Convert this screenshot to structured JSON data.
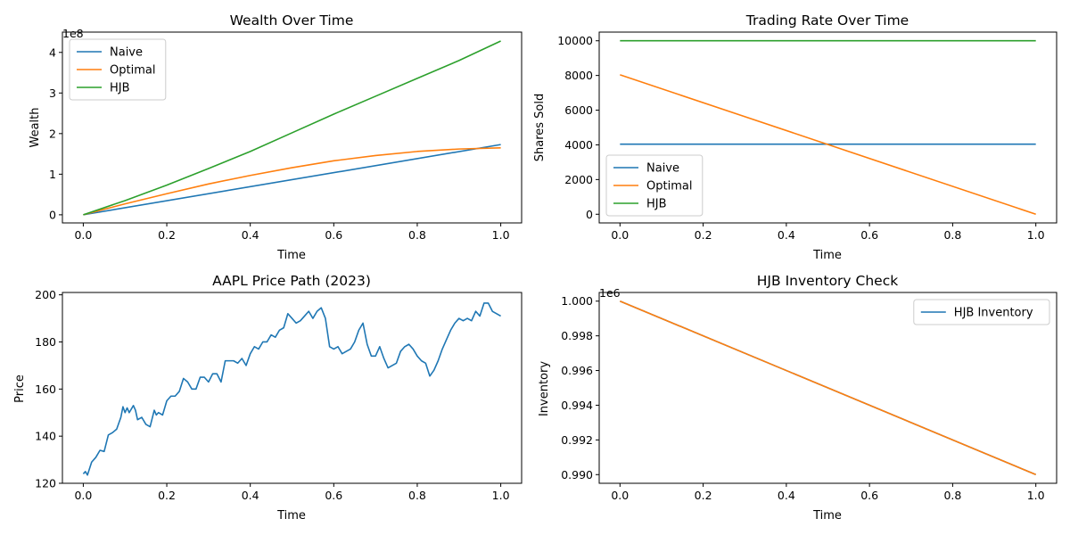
{
  "chart_data": [
    {
      "id": "wealth",
      "type": "line",
      "title": "Wealth Over Time",
      "xlabel": "Time",
      "ylabel": "Wealth",
      "offset_label": "1e8",
      "xlim": [
        -0.05,
        1.05
      ],
      "ylim": [
        -0.2,
        4.5
      ],
      "xticks": [
        0.0,
        0.2,
        0.4,
        0.6,
        0.8,
        1.0
      ],
      "xtick_labels": [
        "0.0",
        "0.2",
        "0.4",
        "0.6",
        "0.8",
        "1.0"
      ],
      "yticks": [
        0,
        1,
        2,
        3,
        4
      ],
      "ytick_labels": [
        "0",
        "1",
        "2",
        "3",
        "4"
      ],
      "legend": "upper-left",
      "series": [
        {
          "name": "Naive",
          "color": "#1f77b4",
          "x": [
            0.0,
            1.0
          ],
          "y": [
            0.0,
            1.73
          ]
        },
        {
          "name": "Optimal",
          "color": "#ff7f0e",
          "x": [
            0.0,
            0.1,
            0.2,
            0.3,
            0.4,
            0.5,
            0.6,
            0.7,
            0.8,
            0.9,
            1.0
          ],
          "y": [
            0.0,
            0.27,
            0.52,
            0.76,
            0.97,
            1.16,
            1.33,
            1.46,
            1.56,
            1.62,
            1.65
          ]
        },
        {
          "name": "HJB",
          "color": "#2ca02c",
          "x": [
            0.0,
            0.1,
            0.2,
            0.3,
            0.4,
            0.5,
            0.6,
            0.7,
            0.8,
            0.9,
            1.0
          ],
          "y": [
            0.0,
            0.35,
            0.73,
            1.14,
            1.56,
            2.02,
            2.48,
            2.92,
            3.36,
            3.8,
            4.28
          ]
        }
      ]
    },
    {
      "id": "trading",
      "type": "line",
      "title": "Trading Rate Over Time",
      "xlabel": "Time",
      "ylabel": "Shares Sold",
      "xlim": [
        -0.05,
        1.05
      ],
      "ylim": [
        -500,
        10500
      ],
      "xticks": [
        0.0,
        0.2,
        0.4,
        0.6,
        0.8,
        1.0
      ],
      "xtick_labels": [
        "0.0",
        "0.2",
        "0.4",
        "0.6",
        "0.8",
        "1.0"
      ],
      "yticks": [
        0,
        2000,
        4000,
        6000,
        8000,
        10000
      ],
      "ytick_labels": [
        "0",
        "2000",
        "4000",
        "6000",
        "8000",
        "10000"
      ],
      "legend": "lower-left",
      "series": [
        {
          "name": "Naive",
          "color": "#1f77b4",
          "x": [
            0.0,
            1.0
          ],
          "y": [
            4040,
            4040
          ]
        },
        {
          "name": "Optimal",
          "color": "#ff7f0e",
          "x": [
            0.0,
            1.0
          ],
          "y": [
            8040,
            0
          ]
        },
        {
          "name": "HJB",
          "color": "#2ca02c",
          "x": [
            0.0,
            1.0
          ],
          "y": [
            10000,
            10000
          ]
        }
      ]
    },
    {
      "id": "price",
      "type": "line",
      "title": "AAPL Price Path (2023)",
      "xlabel": "Time",
      "ylabel": "Price",
      "xlim": [
        -0.05,
        1.05
      ],
      "ylim": [
        120,
        201
      ],
      "xticks": [
        0.0,
        0.2,
        0.4,
        0.6,
        0.8,
        1.0
      ],
      "xtick_labels": [
        "0.0",
        "0.2",
        "0.4",
        "0.6",
        "0.8",
        "1.0"
      ],
      "yticks": [
        120,
        140,
        160,
        180,
        200
      ],
      "ytick_labels": [
        "120",
        "140",
        "160",
        "180",
        "200"
      ],
      "series": [
        {
          "color": "#1f77b4",
          "x": [
            0.0,
            0.005,
            0.01,
            0.02,
            0.03,
            0.04,
            0.05,
            0.06,
            0.07,
            0.08,
            0.09,
            0.095,
            0.1,
            0.105,
            0.11,
            0.12,
            0.125,
            0.13,
            0.14,
            0.15,
            0.16,
            0.17,
            0.175,
            0.18,
            0.19,
            0.2,
            0.21,
            0.22,
            0.23,
            0.24,
            0.25,
            0.26,
            0.27,
            0.28,
            0.29,
            0.3,
            0.31,
            0.32,
            0.33,
            0.34,
            0.35,
            0.36,
            0.37,
            0.38,
            0.39,
            0.4,
            0.41,
            0.42,
            0.43,
            0.44,
            0.45,
            0.46,
            0.47,
            0.48,
            0.49,
            0.5,
            0.51,
            0.52,
            0.53,
            0.54,
            0.55,
            0.56,
            0.57,
            0.58,
            0.59,
            0.6,
            0.61,
            0.62,
            0.63,
            0.64,
            0.65,
            0.66,
            0.67,
            0.68,
            0.69,
            0.7,
            0.71,
            0.72,
            0.73,
            0.74,
            0.75,
            0.76,
            0.77,
            0.78,
            0.79,
            0.8,
            0.81,
            0.82,
            0.83,
            0.84,
            0.85,
            0.86,
            0.87,
            0.88,
            0.89,
            0.9,
            0.91,
            0.92,
            0.93,
            0.94,
            0.95,
            0.96,
            0.97,
            0.98,
            0.99,
            1.0
          ],
          "y": [
            124,
            125,
            123.5,
            129,
            131,
            134,
            133.5,
            140.5,
            141.5,
            143,
            148,
            152.5,
            150,
            152,
            150,
            153,
            151,
            147,
            148,
            145,
            144,
            151,
            149,
            150,
            149,
            155,
            157,
            157,
            159,
            164.5,
            163,
            160,
            160,
            165,
            165,
            163,
            166.5,
            166.5,
            163,
            172,
            172,
            172,
            171,
            173,
            170,
            175,
            178,
            177,
            180,
            180,
            183,
            182,
            185,
            186,
            192,
            190,
            188,
            189,
            191,
            193,
            190,
            193,
            194.5,
            190,
            178,
            177,
            178,
            175,
            176,
            177,
            180,
            185,
            188,
            179,
            174,
            174,
            178,
            173,
            169,
            170,
            171,
            176,
            178,
            179,
            177,
            174,
            172,
            171,
            165.5,
            168,
            172,
            177,
            181,
            185,
            188,
            190,
            189,
            190,
            189,
            193,
            191,
            196.5,
            196.5,
            193,
            192,
            191
          ]
        }
      ]
    },
    {
      "id": "inventory",
      "type": "line",
      "title": "HJB Inventory Check",
      "xlabel": "Time",
      "ylabel": "Inventory",
      "offset_label": "1e6",
      "xlim": [
        -0.05,
        1.05
      ],
      "ylim": [
        0.9895,
        1.0005
      ],
      "xticks": [
        0.0,
        0.2,
        0.4,
        0.6,
        0.8,
        1.0
      ],
      "xtick_labels": [
        "0.0",
        "0.2",
        "0.4",
        "0.6",
        "0.8",
        "1.0"
      ],
      "yticks": [
        0.99,
        0.992,
        0.994,
        0.996,
        0.998,
        1.0
      ],
      "ytick_labels": [
        "0.990",
        "0.992",
        "0.994",
        "0.996",
        "0.998",
        "1.000"
      ],
      "legend": "upper-right",
      "series": [
        {
          "name": "HJB Inventory",
          "color": "#1f77b4",
          "x": [
            0.0,
            1.0
          ],
          "y": [
            1.0,
            0.99
          ]
        },
        {
          "color": "#ff7f0e",
          "x": [
            0.0,
            1.0
          ],
          "y": [
            1.0,
            0.99
          ]
        }
      ]
    }
  ]
}
